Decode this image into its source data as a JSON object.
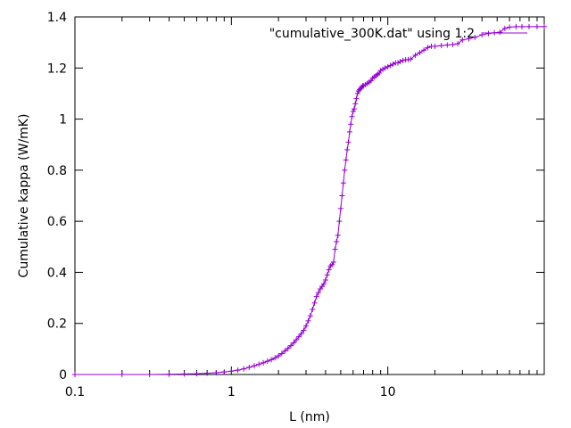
{
  "chart_data": {
    "type": "line",
    "title": "",
    "xlabel": "L (nm)",
    "ylabel": "Cumulative kappa (W/mK)",
    "xscale": "log",
    "xlim": [
      0.1,
      100
    ],
    "ylim": [
      0,
      1.4
    ],
    "x_ticks": [
      {
        "value": 0.1,
        "label": "0.1"
      },
      {
        "value": 1,
        "label": "1"
      },
      {
        "value": 10,
        "label": "10"
      }
    ],
    "y_ticks": [
      {
        "value": 0,
        "label": "0"
      },
      {
        "value": 0.2,
        "label": "0.2"
      },
      {
        "value": 0.4,
        "label": "0.4"
      },
      {
        "value": 0.6,
        "label": "0.6"
      },
      {
        "value": 0.8,
        "label": "0.8"
      },
      {
        "value": 1,
        "label": "1"
      },
      {
        "value": 1.2,
        "label": "1.2"
      },
      {
        "value": 1.4,
        "label": "1.4"
      }
    ],
    "grid": false,
    "legend_position": "top-right",
    "series": [
      {
        "name": "\"cumulative_300K.dat\" using 1:2",
        "color": "#9400d3",
        "marker": "plus",
        "x": [
          0.1,
          0.2,
          0.3,
          0.4,
          0.5,
          0.6,
          0.7,
          0.8,
          0.9,
          1.0,
          1.1,
          1.2,
          1.3,
          1.4,
          1.5,
          1.6,
          1.7,
          1.8,
          1.9,
          2.0,
          2.1,
          2.2,
          2.3,
          2.4,
          2.5,
          2.6,
          2.7,
          2.8,
          2.9,
          3.0,
          3.1,
          3.2,
          3.3,
          3.4,
          3.5,
          3.6,
          3.7,
          3.8,
          3.9,
          4.0,
          4.1,
          4.2,
          4.3,
          4.4,
          4.5,
          4.6,
          4.7,
          4.8,
          4.9,
          5.0,
          5.1,
          5.2,
          5.3,
          5.4,
          5.5,
          5.6,
          5.7,
          5.8,
          5.9,
          6.0,
          6.1,
          6.2,
          6.3,
          6.4,
          6.5,
          6.6,
          6.7,
          6.8,
          6.9,
          7.0,
          7.2,
          7.4,
          7.6,
          7.8,
          8.0,
          8.2,
          8.4,
          8.6,
          8.8,
          9.0,
          9.3,
          9.6,
          10.0,
          10.4,
          10.8,
          11.2,
          11.6,
          12.0,
          12.5,
          13.0,
          13.5,
          14.0,
          15.0,
          16.0,
          17.0,
          18.0,
          19.0,
          20.0,
          22.0,
          24.0,
          26.0,
          28.0,
          30.0,
          33.0,
          36.0,
          40.0,
          44.0,
          48.0,
          52.0,
          56.0,
          60.0,
          66.0,
          72.0,
          80.0,
          90.0,
          100.0
        ],
        "y": [
          0.0,
          0.0,
          0.0,
          0.001,
          0.002,
          0.003,
          0.005,
          0.007,
          0.01,
          0.013,
          0.017,
          0.022,
          0.028,
          0.034,
          0.04,
          0.046,
          0.052,
          0.058,
          0.065,
          0.073,
          0.082,
          0.092,
          0.102,
          0.113,
          0.124,
          0.136,
          0.148,
          0.16,
          0.173,
          0.19,
          0.21,
          0.23,
          0.255,
          0.28,
          0.305,
          0.32,
          0.335,
          0.345,
          0.355,
          0.37,
          0.39,
          0.41,
          0.425,
          0.43,
          0.44,
          0.49,
          0.52,
          0.545,
          0.6,
          0.65,
          0.7,
          0.75,
          0.8,
          0.84,
          0.88,
          0.91,
          0.95,
          0.98,
          1.01,
          1.03,
          1.04,
          1.06,
          1.08,
          1.1,
          1.11,
          1.115,
          1.12,
          1.125,
          1.13,
          1.13,
          1.135,
          1.14,
          1.145,
          1.15,
          1.16,
          1.165,
          1.17,
          1.175,
          1.18,
          1.19,
          1.195,
          1.2,
          1.205,
          1.21,
          1.215,
          1.22,
          1.22,
          1.225,
          1.23,
          1.232,
          1.233,
          1.235,
          1.25,
          1.26,
          1.27,
          1.28,
          1.285,
          1.285,
          1.288,
          1.29,
          1.292,
          1.295,
          1.31,
          1.315,
          1.32,
          1.33,
          1.335,
          1.338,
          1.34,
          1.355,
          1.36,
          1.362,
          1.362,
          1.362,
          1.362,
          1.362
        ]
      }
    ]
  }
}
